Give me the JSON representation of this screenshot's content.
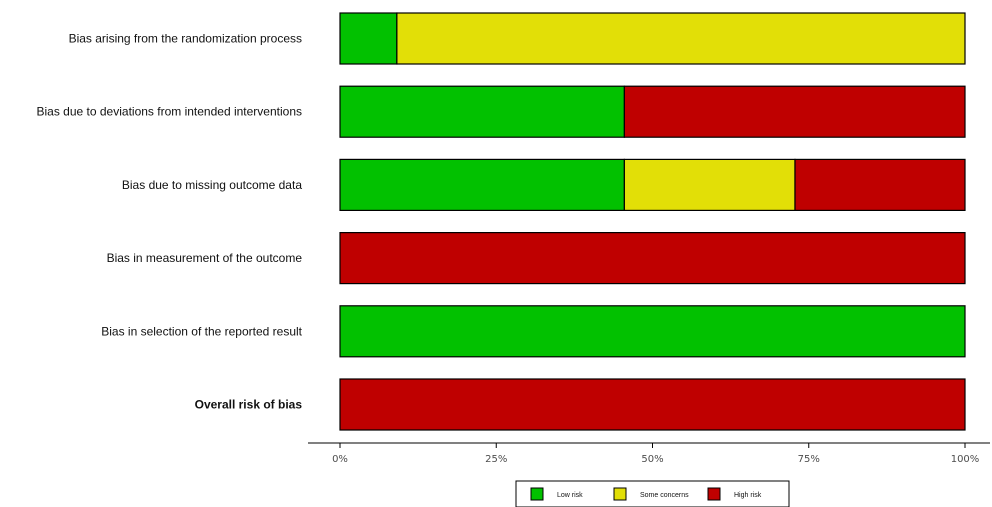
{
  "chart_data": {
    "type": "bar",
    "orientation": "horizontal",
    "stacked": true,
    "percent": true,
    "categories": [
      "Bias arising from the randomization process",
      "Bias due to deviations from intended interventions",
      "Bias due to missing outcome data",
      "Bias in measurement of the outcome",
      "Bias in selection of the reported result",
      "Overall risk of bias"
    ],
    "bold_categories": [
      "Overall risk of bias"
    ],
    "series": [
      {
        "name": "Low risk",
        "color": "#02c100",
        "values": [
          9.1,
          45.5,
          45.5,
          0,
          100,
          0
        ]
      },
      {
        "name": "Some concerns",
        "color": "#e2df07",
        "values": [
          90.9,
          0,
          27.3,
          0,
          0,
          0
        ]
      },
      {
        "name": "High risk",
        "color": "#bf0000",
        "values": [
          0,
          54.5,
          27.2,
          100,
          0,
          100
        ]
      }
    ],
    "xlim": [
      0,
      100
    ],
    "x_ticks": [
      0,
      25,
      50,
      75,
      100
    ],
    "x_tick_labels": [
      "0%",
      "25%",
      "50%",
      "75%",
      "100%"
    ],
    "grid": false,
    "legend_position": "bottom"
  }
}
